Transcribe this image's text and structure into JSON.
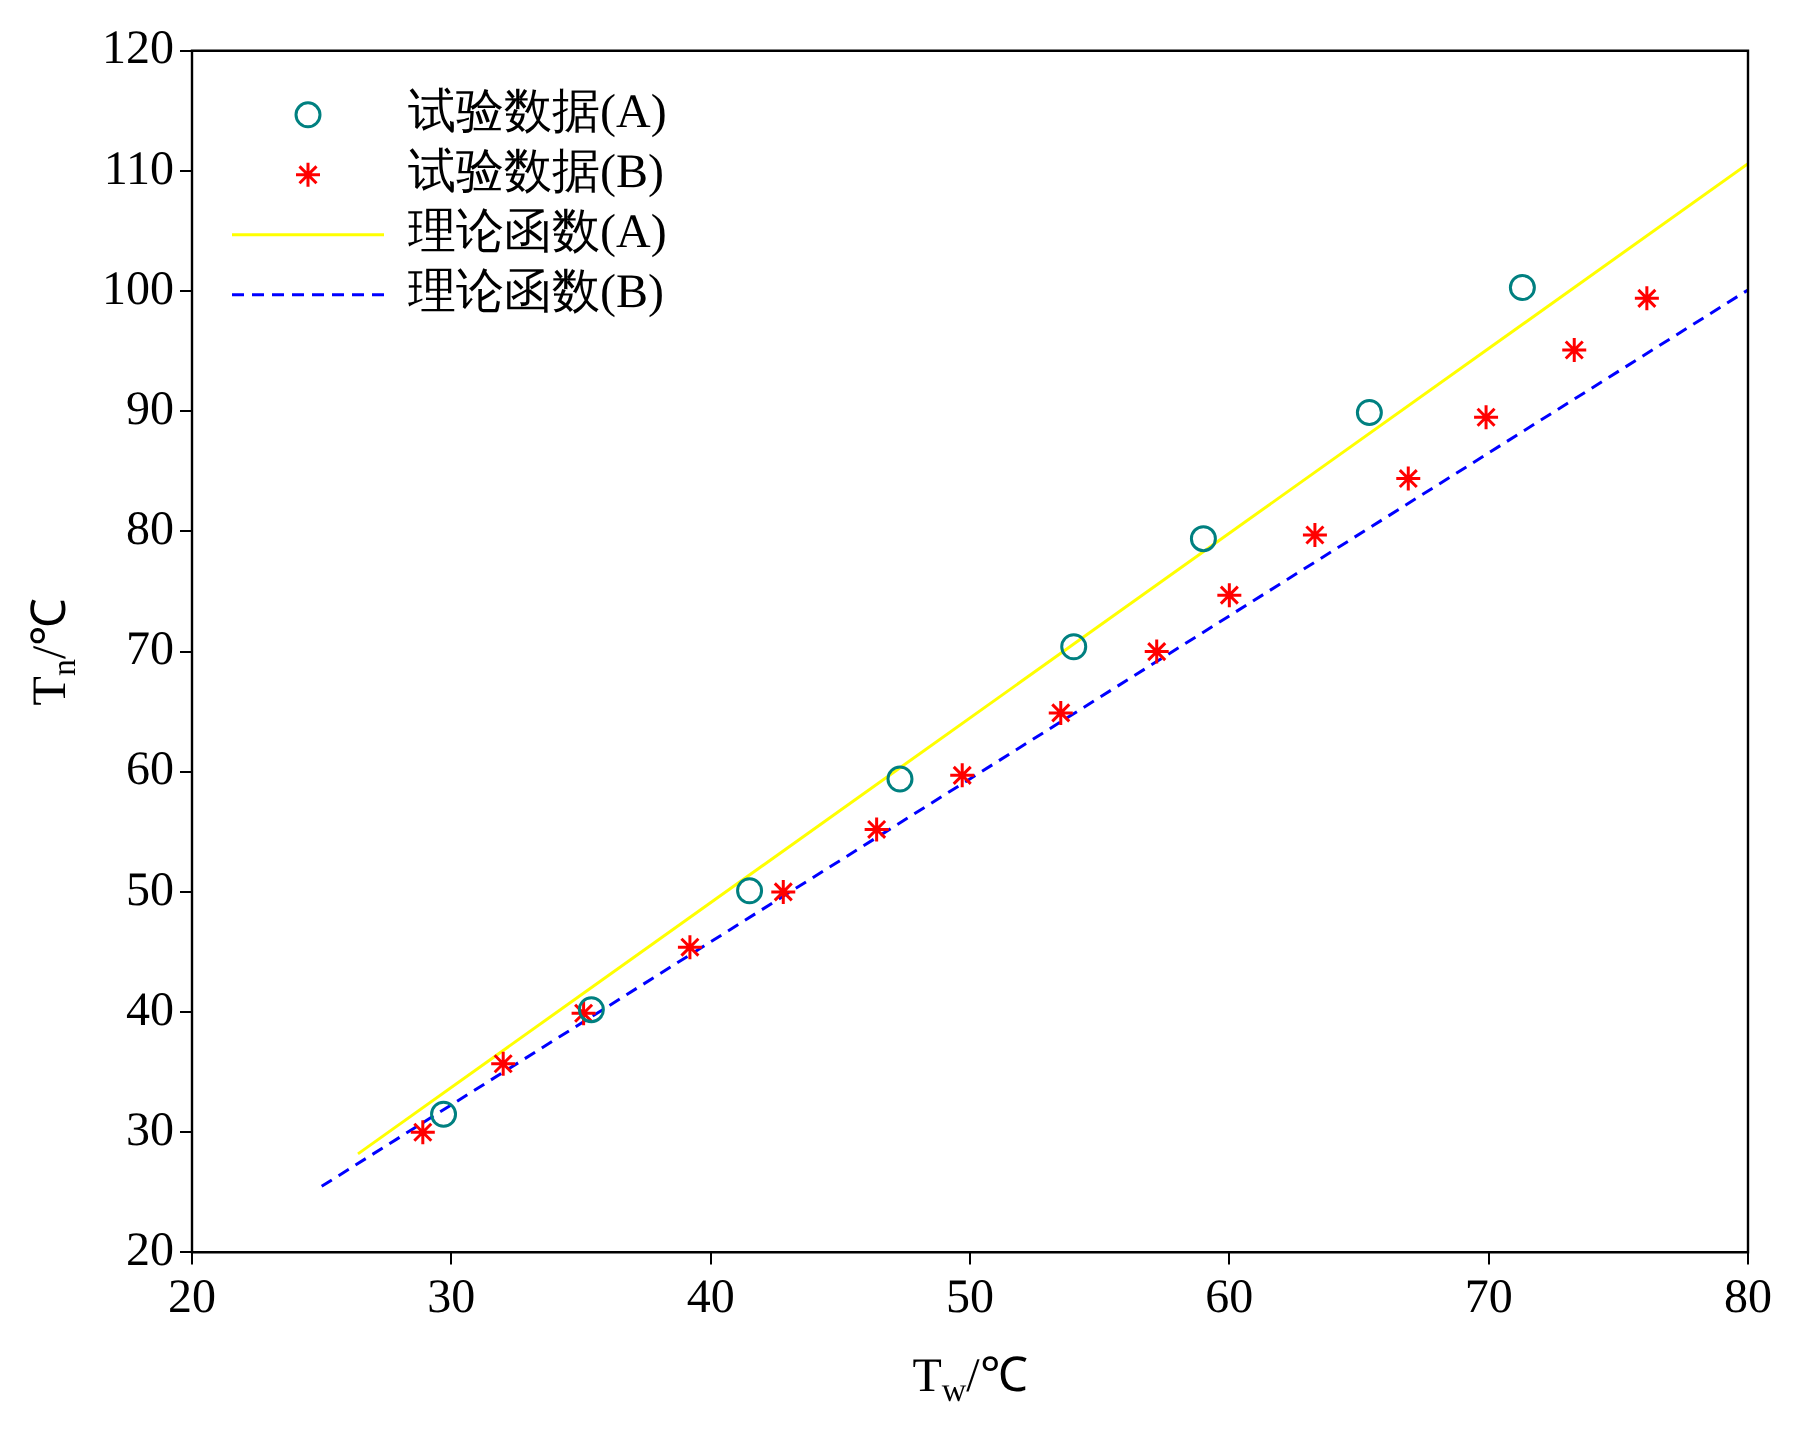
{
  "chart_data": {
    "type": "scatter",
    "xlabel": "T$_{w}$/℃",
    "ylabel": "T$_{n}$/℃",
    "xlim": [
      20,
      80
    ],
    "xticks": [
      20,
      30,
      40,
      50,
      60,
      70,
      80
    ],
    "ylim": [
      20,
      120
    ],
    "yticks": [
      20,
      30,
      40,
      50,
      60,
      70,
      80,
      90,
      100,
      110,
      120
    ],
    "grid": false,
    "legend": "top left",
    "series": [
      {
        "name": "试验数据(A)",
        "marker": "circle",
        "color": "#008080",
        "x": [
          29.7,
          35.4,
          41.5,
          47.3,
          54.0,
          59.0,
          65.4,
          71.3
        ],
        "values": [
          31.5,
          40.2,
          50.1,
          59.4,
          70.4,
          79.4,
          89.9,
          100.3
        ]
      },
      {
        "name": "试验数据(B)",
        "marker": "cross",
        "color": "#ff0000",
        "x": [
          28.9,
          32.0,
          35.1,
          39.2,
          42.8,
          46.4,
          49.7,
          53.5,
          57.2,
          60.0,
          63.3,
          66.9,
          69.9,
          73.3,
          76.1
        ],
        "values": [
          30.0,
          35.7,
          39.9,
          45.4,
          50.0,
          55.2,
          59.7,
          64.9,
          70.0,
          74.7,
          79.7,
          84.4,
          89.5,
          95.1,
          99.4
        ]
      },
      {
        "name": "理论函数(A)",
        "type": "line",
        "marker": "none",
        "line_style": "solid",
        "color": "#ffff00",
        "x": [
          26.4,
          80
        ],
        "values": [
          28.2,
          110.6
        ]
      },
      {
        "name": "理论函数(B)",
        "type": "line",
        "marker": "none",
        "line_style": "dashed",
        "color": "#0000ff",
        "x": [
          25,
          80
        ],
        "values": [
          25.5,
          100.1
        ]
      }
    ]
  }
}
